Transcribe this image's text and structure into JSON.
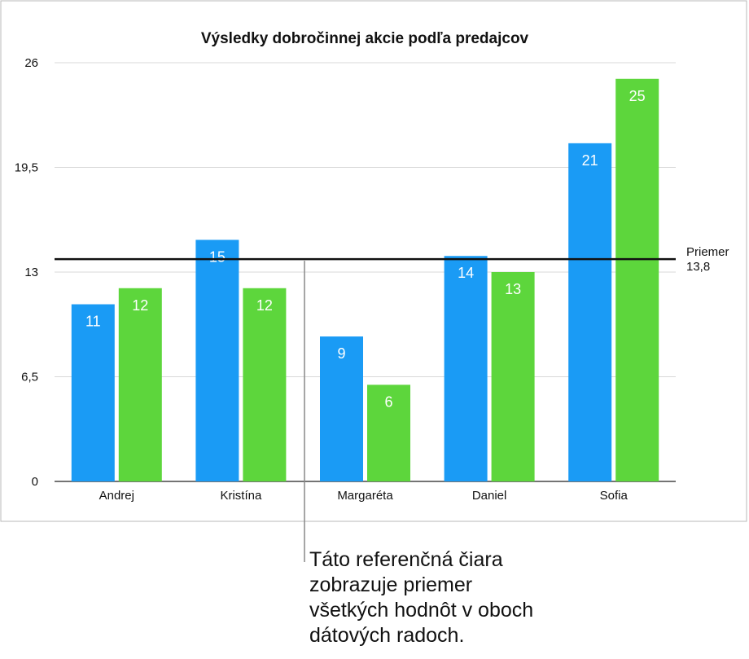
{
  "chart_data": {
    "type": "bar",
    "title": "Výsledky dobročinnej akcie podľa predajcov",
    "categories": [
      "Andrej",
      "Kristína",
      "Margaréta",
      "Daniel",
      "Sofia"
    ],
    "series": [
      {
        "values": [
          11,
          15,
          9,
          14,
          21
        ],
        "color": "#1a9bf5"
      },
      {
        "values": [
          12,
          12,
          6,
          13,
          25
        ],
        "color": "#5dd63c"
      }
    ],
    "ylim": [
      0,
      26
    ],
    "yticks": [
      "0",
      "6,5",
      "13",
      "19,5",
      "26"
    ],
    "ytick_values": [
      0,
      6.5,
      13,
      19.5,
      26
    ],
    "grid": true,
    "reference_line": {
      "value": 13.8,
      "label": "Priemer",
      "value_label": "13,8"
    }
  },
  "callout": {
    "lines": [
      "Táto referenčná čiara",
      "zobrazuje priemer",
      "všetkých hodnôt v oboch",
      "dátových radoch."
    ]
  }
}
